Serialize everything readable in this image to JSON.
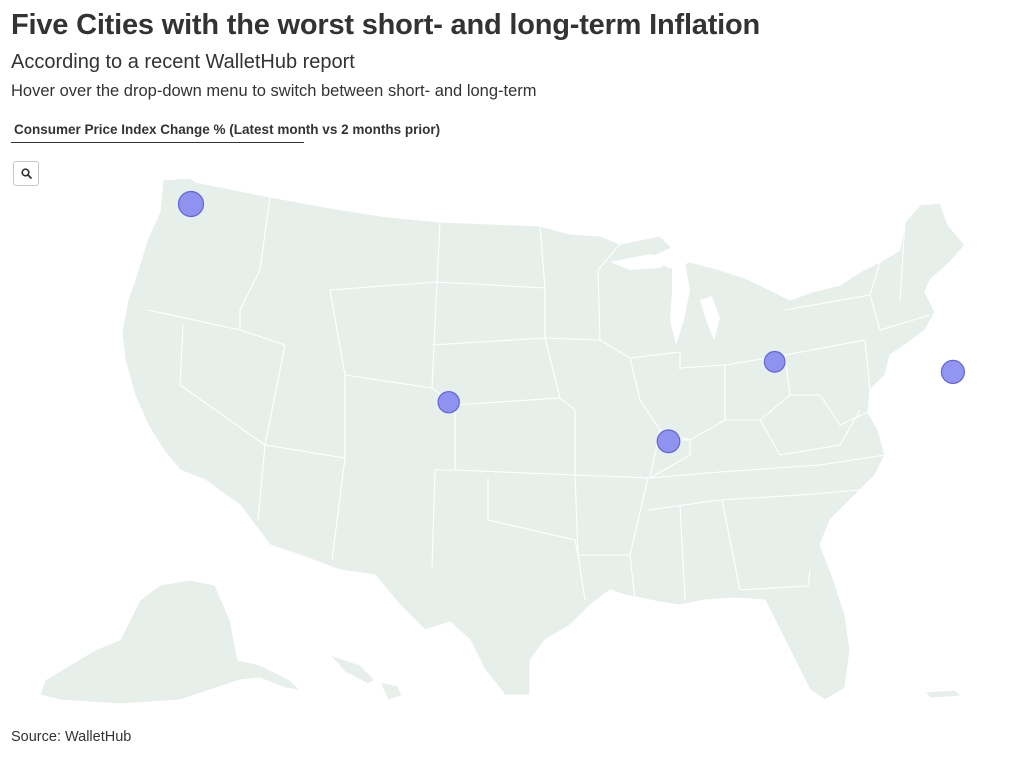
{
  "header": {
    "title": "Five Cities with the worst short- and long-term Inflation",
    "subtitle": "According to a recent WalletHub report",
    "description": "Hover over the drop-down menu to switch between short- and long-term"
  },
  "dropdown": {
    "selected": "Consumer Price Index Change % (Latest month vs 2 months prior)"
  },
  "controls": {
    "search_icon": "search-icon"
  },
  "map": {
    "region": "Contiguous United States with Alaska inset",
    "land_color": "#e7efea",
    "border_color": "#ffffff",
    "marker_color": "#7b7ef0",
    "markers": [
      {
        "id": "seattle",
        "lon": -122.33,
        "lat": 47.61,
        "relative_size": 1.0
      },
      {
        "id": "denver",
        "lon": -104.99,
        "lat": 39.74,
        "relative_size": 0.85
      },
      {
        "id": "st-louis",
        "lon": -90.2,
        "lat": 38.63,
        "relative_size": 0.9
      },
      {
        "id": "detroit",
        "lon": -83.05,
        "lat": 42.33,
        "relative_size": 0.82
      },
      {
        "id": "boston",
        "lon": -71.06,
        "lat": 42.36,
        "relative_size": 0.92
      }
    ]
  },
  "footer": {
    "source": "Source: WalletHub"
  }
}
